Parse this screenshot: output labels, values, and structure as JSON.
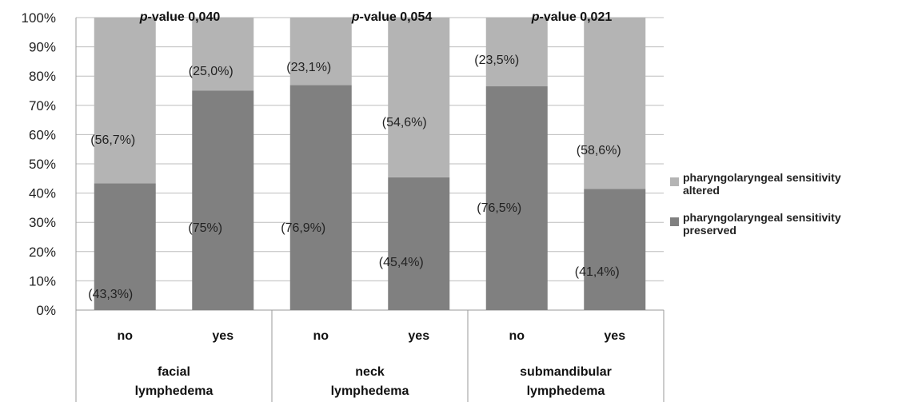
{
  "chart_data": {
    "type": "bar",
    "stacked": true,
    "percent": true,
    "title": "",
    "ylim": [
      0,
      100
    ],
    "yticks": [
      "0%",
      "10%",
      "20%",
      "30%",
      "40%",
      "50%",
      "60%",
      "70%",
      "80%",
      "90%",
      "100%"
    ],
    "grid": true,
    "legend_position": "right",
    "groups": [
      {
        "label": "facial lymphedema",
        "categories": [
          "no",
          "yes"
        ],
        "p_value_text": "0,040"
      },
      {
        "label": "neck lymphedema",
        "categories": [
          "no",
          "yes"
        ],
        "p_value_text": "0,054"
      },
      {
        "label": "submandibular lymphedema",
        "categories": [
          "no",
          "yes"
        ],
        "p_value_text": "0,021"
      }
    ],
    "p_value_prefix": "p",
    "p_value_suffix": "-value",
    "categories": [
      "no",
      "yes",
      "no",
      "yes",
      "no",
      "yes"
    ],
    "series": [
      {
        "name": "pharyngolaryngeal sensitivity preserved",
        "color": "#808080",
        "values": [
          43.3,
          75.0,
          76.9,
          45.4,
          76.5,
          41.4
        ],
        "labels": [
          "(43,3%)",
          "(75%)",
          "(76,9%)",
          "(45,4%)",
          "(76,5%)",
          "(41,4%)"
        ]
      },
      {
        "name": "pharyngolaryngeal sensitivity altered",
        "color": "#b4b4b4",
        "values": [
          56.7,
          25.0,
          23.1,
          54.6,
          23.5,
          58.6
        ],
        "labels": [
          "(56,7%)",
          "(25,0%)",
          "(23,1%)",
          "(54,6%)",
          "(23,5%)",
          "(58,6%)"
        ]
      }
    ],
    "legend": [
      {
        "line1": "pharyngolaryngeal sensitivity",
        "line2": "altered",
        "color": "#b4b4b4"
      },
      {
        "line1": "pharyngolaryngeal sensitivity",
        "line2": "preserved",
        "color": "#808080"
      }
    ]
  }
}
